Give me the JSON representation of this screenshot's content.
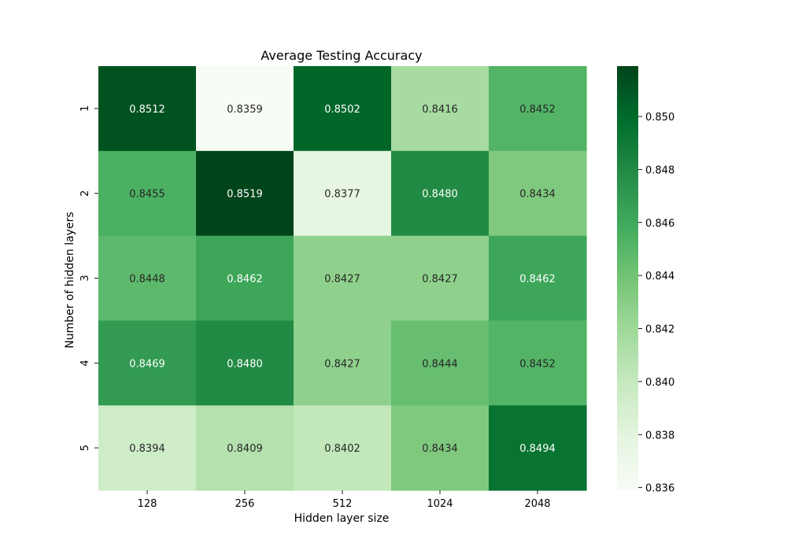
{
  "chart_data": {
    "type": "heatmap",
    "title": "Average Testing Accuracy",
    "xlabel": "Hidden layer size",
    "ylabel": "Number of hidden layers",
    "x_categories": [
      "128",
      "256",
      "512",
      "1024",
      "2048"
    ],
    "y_categories": [
      "1",
      "2",
      "3",
      "4",
      "5"
    ],
    "values": [
      [
        0.8512,
        0.8359,
        0.8502,
        0.8416,
        0.8452
      ],
      [
        0.8455,
        0.8519,
        0.8377,
        0.848,
        0.8434
      ],
      [
        0.8448,
        0.8462,
        0.8427,
        0.8427,
        0.8462
      ],
      [
        0.8469,
        0.848,
        0.8427,
        0.8444,
        0.8452
      ],
      [
        0.8394,
        0.8409,
        0.8402,
        0.8434,
        0.8494
      ]
    ],
    "value_format_decimals": 4,
    "colormap": "Greens",
    "colorbar": {
      "range": [
        0.8359,
        0.8519
      ],
      "ticks": [
        "0.836",
        "0.838",
        "0.840",
        "0.842",
        "0.844",
        "0.846",
        "0.848",
        "0.850"
      ]
    },
    "label_colors": {
      "dark": "#262626",
      "light": "#ffffff"
    }
  }
}
